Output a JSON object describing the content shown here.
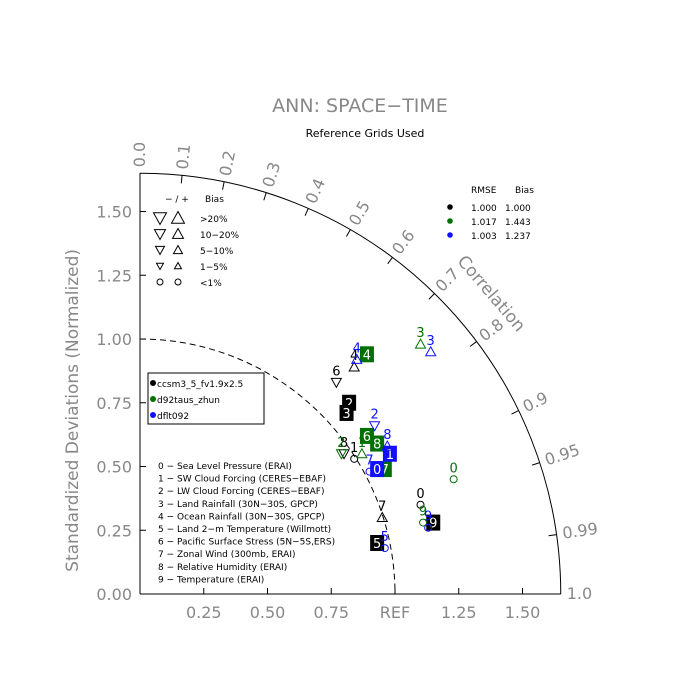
{
  "chart_data": {
    "type": "scatter",
    "title": "ANN: SPACE−TIME",
    "subtitle": "Reference Grids Used",
    "ylabel": "Standardized Deviations (Normalized)",
    "angular_label": "Correlation",
    "ref_label": "REF",
    "std_ticks": [
      "0.00",
      "0.25",
      "0.50",
      "0.75",
      "1.25",
      "1.50"
    ],
    "y_ticks": [
      "0.00",
      "0.25",
      "0.50",
      "0.75",
      "1.00",
      "1.25",
      "1.50"
    ],
    "corr_ticks": [
      "0.0",
      "0.1",
      "0.2",
      "0.3",
      "0.4",
      "0.5",
      "0.6",
      "0.7",
      "0.8",
      "0.9",
      "0.95",
      "0.99",
      "1.0"
    ],
    "std_max": 1.65,
    "bias_legend": {
      "header_sign": "− / +",
      "header_bias": "Bias",
      "rows": [
        ">20%",
        "10−20%",
        "5−10%",
        "1−5%",
        "<1%"
      ]
    },
    "rmse_legend": {
      "header_rmse": "RMSE",
      "header_bias": "Bias",
      "rows": [
        {
          "rmse": "1.000",
          "bias": "1.000",
          "color": "#000000"
        },
        {
          "rmse": "1.017",
          "bias": "1.443",
          "color": "#007000"
        },
        {
          "rmse": "1.003",
          "bias": "1.237",
          "color": "#1010ff"
        }
      ]
    },
    "case_legend": [
      {
        "name": "ccsm3_5_fv1.9x2.5",
        "color": "#000000"
      },
      {
        "name": "d92taus_zhun",
        "color": "#007000"
      },
      {
        "name": "dflt092",
        "color": "#1010ff"
      }
    ],
    "variables": [
      "0 − Sea Level Pressure (ERAI)",
      "1 − SW Cloud Forcing (CERES−EBAF)",
      "2 − LW Cloud Forcing (CERES−EBAF)",
      "3 − Land Rainfall (30N−30S, GPCP)",
      "4 − Ocean Rainfall (30N−30S, GPCP)",
      "5 − Land 2−m Temperature (Willmott)",
      "6 − Pacific Surface Stress (5N−5S,ERS)",
      "7 − Zonal Wind (300mb, ERAI)",
      "8 − Relative Humidity (ERAI)",
      "9 − Temperature (ERAI)"
    ],
    "series": [
      {
        "name": "ccsm3_5_fv1.9x2.5",
        "color": "#000000",
        "points": [
          {
            "id": "0",
            "x": 1.1,
            "y": 0.35,
            "shape": "circle",
            "boxed": false
          },
          {
            "id": "1",
            "x": 0.84,
            "y": 0.53,
            "shape": "circle",
            "boxed": false
          },
          {
            "id": "2",
            "x": 0.82,
            "y": 0.75,
            "shape": "box",
            "boxed": true
          },
          {
            "id": "3",
            "x": 0.81,
            "y": 0.71,
            "shape": "box",
            "boxed": true
          },
          {
            "id": "4",
            "x": 0.84,
            "y": 0.89,
            "shape": "tri-up",
            "boxed": false
          },
          {
            "id": "5",
            "x": 0.93,
            "y": 0.2,
            "shape": "box",
            "boxed": true
          },
          {
            "id": "6",
            "x": 0.77,
            "y": 0.83,
            "shape": "tri-down",
            "boxed": false
          },
          {
            "id": "7",
            "x": 0.95,
            "y": 0.3,
            "shape": "tri-up",
            "boxed": false
          },
          {
            "id": "8",
            "x": 0.8,
            "y": 0.55,
            "shape": "tri-down",
            "boxed": false
          },
          {
            "id": "9",
            "x": 1.15,
            "y": 0.28,
            "shape": "box",
            "boxed": true
          }
        ]
      },
      {
        "name": "d92taus_zhun",
        "color": "#007000",
        "points": [
          {
            "id": "0",
            "x": 1.23,
            "y": 0.45,
            "shape": "circle",
            "boxed": false
          },
          {
            "id": "1",
            "x": 0.87,
            "y": 0.55,
            "shape": "tri-up",
            "boxed": false
          },
          {
            "id": "2",
            "x": 0.79,
            "y": 0.55,
            "shape": "tri-down",
            "boxed": false
          },
          {
            "id": "3",
            "x": 1.1,
            "y": 0.98,
            "shape": "tri-up",
            "boxed": false
          },
          {
            "id": "4",
            "x": 0.89,
            "y": 0.94,
            "shape": "box",
            "boxed": true
          },
          {
            "id": "6",
            "x": 0.89,
            "y": 0.62,
            "shape": "box",
            "boxed": true
          },
          {
            "id": "7",
            "x": 0.96,
            "y": 0.49,
            "shape": "box",
            "boxed": true
          },
          {
            "id": "8",
            "x": 0.93,
            "y": 0.59,
            "shape": "box",
            "boxed": true
          },
          {
            "id": "9",
            "x": 1.11,
            "y": 0.28,
            "shape": "circle",
            "boxed": false
          }
        ]
      },
      {
        "name": "dflt092",
        "color": "#1010ff",
        "points": [
          {
            "id": "0",
            "x": 0.93,
            "y": 0.49,
            "shape": "box",
            "boxed": true
          },
          {
            "id": "1",
            "x": 0.98,
            "y": 0.55,
            "shape": "box",
            "boxed": true
          },
          {
            "id": "2",
            "x": 0.92,
            "y": 0.66,
            "shape": "tri-down",
            "boxed": false
          },
          {
            "id": "3",
            "x": 1.14,
            "y": 0.95,
            "shape": "tri-up",
            "boxed": false
          },
          {
            "id": "4",
            "x": 0.85,
            "y": 0.92,
            "shape": "tri-up",
            "boxed": false
          },
          {
            "id": "5",
            "x": 0.96,
            "y": 0.18,
            "shape": "circle",
            "boxed": false
          },
          {
            "id": "7",
            "x": 0.9,
            "y": 0.48,
            "shape": "circle",
            "boxed": false
          },
          {
            "id": "8",
            "x": 0.97,
            "y": 0.58,
            "shape": "tri-up",
            "boxed": false
          },
          {
            "id": "9",
            "x": 1.13,
            "y": 0.26,
            "shape": "circle",
            "boxed": false
          }
        ]
      }
    ]
  }
}
